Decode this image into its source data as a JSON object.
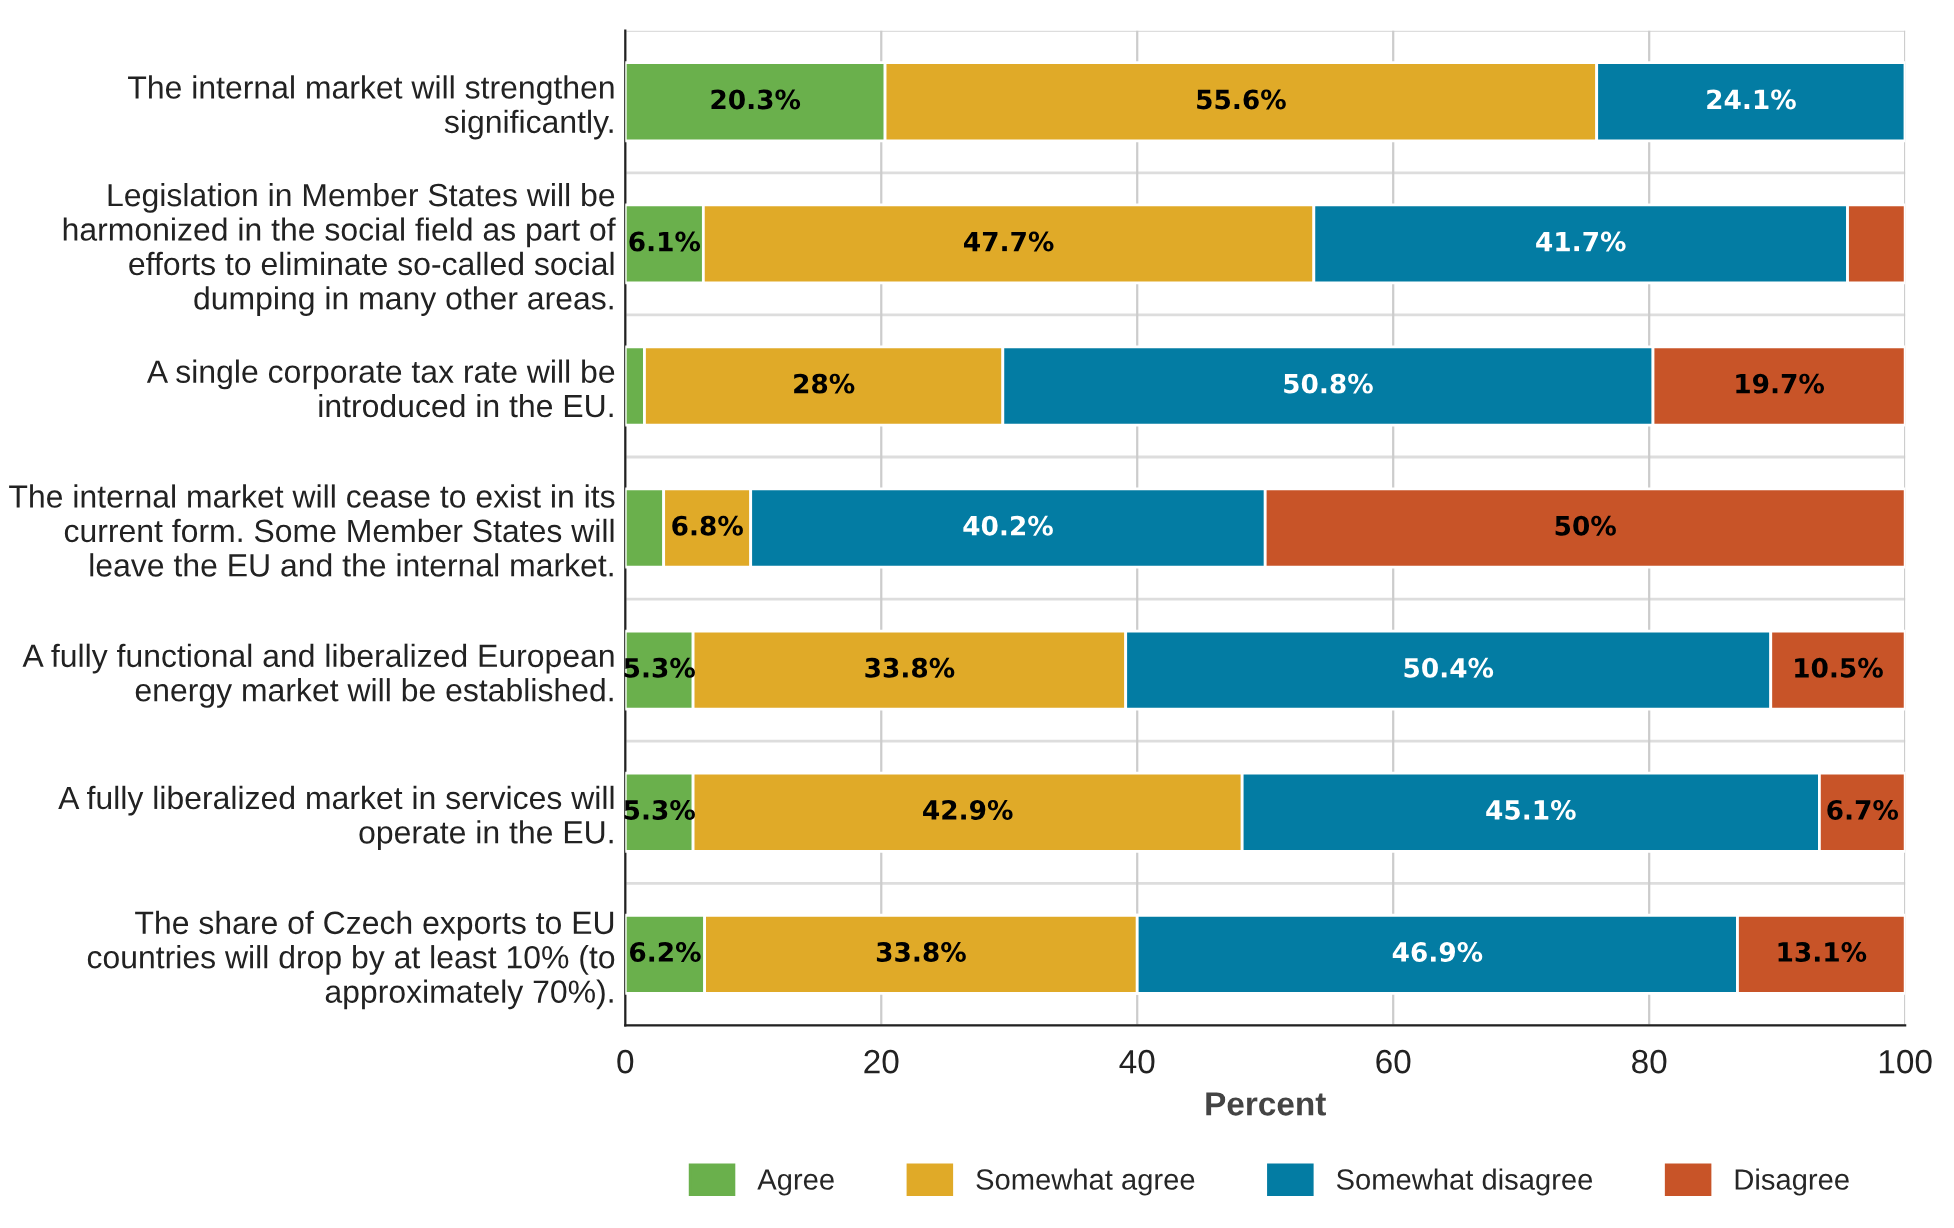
{
  "chart_data": {
    "type": "bar",
    "orientation": "horizontal",
    "stacked": true,
    "xlabel": "Percent",
    "categories": [
      "The internal market will strengthen significantly.",
      "Legislation in Member States will be harmonized in the social field as part of efforts to eliminate so-called social dumping in many other areas.",
      "A single corporate tax rate will be introduced in the EU.",
      "The internal market will cease to exist in its current form. Some Member States will leave the EU and the internal market.",
      "A fully functional and liberalized European energy market will be established.",
      "A fully liberalized market in services will operate in the EU.",
      "The share of Czech exports to EU countries will drop by at least 10% (to approximately 70%)."
    ],
    "series": [
      {
        "name": "Agree",
        "color": "#6ab04c",
        "values": [
          20.3,
          6.1,
          1.5,
          3,
          5.3,
          5.3,
          6.2
        ],
        "value_labels": [
          "20.3%",
          "6.1%",
          null,
          null,
          "5.3%",
          "5.3%",
          "6.2%"
        ]
      },
      {
        "name": "Somewhat agree",
        "color": "#e0aa28",
        "values": [
          55.6,
          47.7,
          28,
          6.8,
          33.8,
          42.9,
          33.8
        ],
        "value_labels": [
          "55.6%",
          "47.7%",
          "28%",
          "6.8%",
          "33.8%",
          "42.9%",
          "33.8%"
        ]
      },
      {
        "name": "Somewhat disagree",
        "color": "#037ca3",
        "values": [
          24.1,
          41.7,
          50.8,
          40.2,
          50.4,
          45.1,
          46.9
        ],
        "value_labels": [
          "24.1%",
          "41.7%",
          "50.8%",
          "40.2%",
          "50.4%",
          "45.1%",
          "46.9%"
        ]
      },
      {
        "name": "Disagree",
        "color": "#c85428",
        "values": [
          null,
          4.5,
          19.7,
          50,
          10.5,
          6.7,
          13.1
        ],
        "value_labels": [
          null,
          null,
          "19.7%",
          "50%",
          "10.5%",
          "6.7%",
          "13.1%"
        ]
      }
    ],
    "xlim": [
      0,
      100
    ],
    "xticks": [
      0,
      20,
      40,
      60,
      80,
      100
    ],
    "grid": true,
    "legend": "bottom"
  }
}
